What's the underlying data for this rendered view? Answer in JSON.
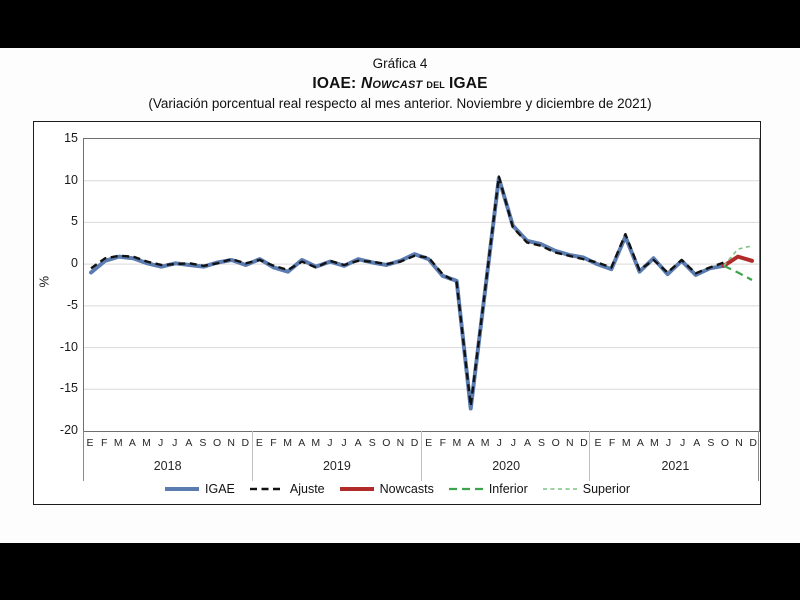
{
  "titles": {
    "line1": "Gráfica 4",
    "line2_prefix": "IOAE: ",
    "line2_nowcast": "Nowcast",
    "line2_del": " del ",
    "line2_suffix": "IGAE",
    "subtitle": "(Variación porcentual real respecto al mes anterior. Noviembre y diciembre de 2021)"
  },
  "chart_data": {
    "type": "line",
    "title": "IOAE: Nowcast del IGAE",
    "xlabel": "",
    "ylabel": "%",
    "ylim": [
      -20,
      15
    ],
    "yticks": [
      15,
      10,
      5,
      0,
      -5,
      -10,
      -15,
      -20
    ],
    "grid": true,
    "legend_position": "bottom",
    "years": [
      "2018",
      "2019",
      "2020",
      "2021"
    ],
    "month_labels": [
      "E",
      "F",
      "M",
      "A",
      "M",
      "J",
      "J",
      "A",
      "S",
      "O",
      "N",
      "D"
    ],
    "axis_colors": {
      "plot_border": "#6f6f6f",
      "gridline": "#d9d9d9",
      "year_separator": "#bfbfbf"
    },
    "series": [
      {
        "name": "IGAE",
        "color": "#5b7cb0",
        "dash": "none",
        "width": 4,
        "values": [
          -1.0,
          0.4,
          0.9,
          0.7,
          0.1,
          -0.3,
          0.1,
          -0.1,
          -0.3,
          0.2,
          0.5,
          -0.1,
          0.6,
          -0.4,
          -0.9,
          0.5,
          -0.3,
          0.3,
          -0.2,
          0.6,
          0.2,
          -0.1,
          0.4,
          1.2,
          0.6,
          -1.4,
          -2.0,
          -17.3,
          -3.5,
          10.3,
          4.6,
          2.8,
          2.4,
          1.6,
          1.1,
          0.8,
          0.0,
          -0.6,
          3.3,
          -0.9,
          0.7,
          -1.2,
          0.4,
          -1.3,
          -0.5,
          -0.2,
          null,
          null
        ]
      },
      {
        "name": "Ajuste",
        "color": "#121212",
        "dash": "7 4.5",
        "width": 2.4,
        "values": [
          -0.5,
          0.7,
          1.0,
          0.9,
          0.3,
          -0.1,
          0.0,
          0.1,
          -0.2,
          0.1,
          0.6,
          0.1,
          0.5,
          -0.2,
          -0.7,
          0.3,
          -0.4,
          0.4,
          -0.1,
          0.4,
          0.3,
          0.0,
          0.3,
          1.0,
          0.8,
          -1.2,
          -2.2,
          -17.0,
          -3.4,
          10.5,
          4.4,
          2.6,
          2.2,
          1.4,
          1.0,
          0.6,
          0.2,
          -0.4,
          3.6,
          -0.7,
          0.5,
          -1.0,
          0.5,
          -1.1,
          -0.4,
          0.2,
          null,
          null
        ]
      },
      {
        "name": "Nowcasts",
        "color": "#b02b2a",
        "dash": "none",
        "width": 4,
        "values": [
          null,
          null,
          null,
          null,
          null,
          null,
          null,
          null,
          null,
          null,
          null,
          null,
          null,
          null,
          null,
          null,
          null,
          null,
          null,
          null,
          null,
          null,
          null,
          null,
          null,
          null,
          null,
          null,
          null,
          null,
          null,
          null,
          null,
          null,
          null,
          null,
          null,
          null,
          null,
          null,
          null,
          null,
          null,
          null,
          null,
          -0.2,
          0.9,
          0.4
        ]
      },
      {
        "name": "Inferior",
        "color": "#3fa34d",
        "dash": "8 5",
        "width": 2.2,
        "values": [
          null,
          null,
          null,
          null,
          null,
          null,
          null,
          null,
          null,
          null,
          null,
          null,
          null,
          null,
          null,
          null,
          null,
          null,
          null,
          null,
          null,
          null,
          null,
          null,
          null,
          null,
          null,
          null,
          null,
          null,
          null,
          null,
          null,
          null,
          null,
          null,
          null,
          null,
          null,
          null,
          null,
          null,
          null,
          null,
          null,
          -0.2,
          -1.0,
          -1.9
        ]
      },
      {
        "name": "Superior",
        "color": "#7cc383",
        "dash": "4 3.5",
        "width": 1.6,
        "values": [
          null,
          null,
          null,
          null,
          null,
          null,
          null,
          null,
          null,
          null,
          null,
          null,
          null,
          null,
          null,
          null,
          null,
          null,
          null,
          null,
          null,
          null,
          null,
          null,
          null,
          null,
          null,
          null,
          null,
          null,
          null,
          null,
          null,
          null,
          null,
          null,
          null,
          null,
          null,
          null,
          null,
          null,
          null,
          null,
          null,
          -0.2,
          1.8,
          2.2
        ]
      }
    ]
  }
}
